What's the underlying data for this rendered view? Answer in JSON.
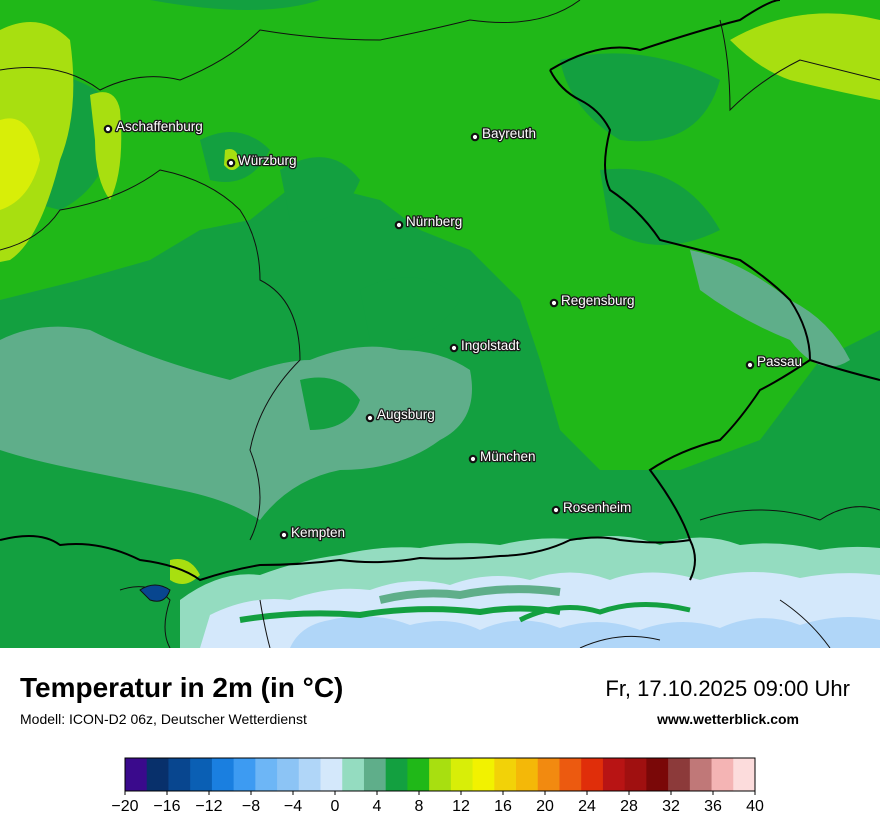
{
  "map": {
    "title": "Temperatur in 2m (in °C)",
    "model": "Modell: ICON-D2 06z, Deutscher Wetterdienst",
    "datetime": "Fr, 17.10.2025 09:00 Uhr",
    "website": "www.wetterblick.com",
    "cities": [
      {
        "name": "Aschaffenburg"
      },
      {
        "name": "Würzburg"
      },
      {
        "name": "Bayreuth"
      },
      {
        "name": "Nürnberg"
      },
      {
        "name": "Regensburg"
      },
      {
        "name": "Ingolstadt"
      },
      {
        "name": "Passau"
      },
      {
        "name": "Augsburg"
      },
      {
        "name": "München"
      },
      {
        "name": "Rosenheim"
      },
      {
        "name": "Kempten"
      }
    ]
  },
  "colorbar": {
    "tick_labels": [
      "−20",
      "−16",
      "−12",
      "−8",
      "−4",
      "0",
      "4",
      "8",
      "12",
      "16",
      "20",
      "24",
      "28",
      "32",
      "36",
      "40"
    ],
    "colors": [
      "#3a0a8c",
      "#08306b",
      "#08468f",
      "#0a5fb4",
      "#1a7fe0",
      "#3d9bf2",
      "#6db6f6",
      "#8cc4f5",
      "#b0d6f8",
      "#d4e8fb",
      "#94dcc0",
      "#5fae8a",
      "#13a040",
      "#20b818",
      "#a8df10",
      "#d8ee08",
      "#f2f200",
      "#f2d208",
      "#f4b808",
      "#f28a10",
      "#ec5a10",
      "#e02e0a",
      "#b81414",
      "#a01010",
      "#7a0808",
      "#8c3a3a",
      "#c07878",
      "#f4b4b4",
      "#fcdcdc"
    ]
  }
}
